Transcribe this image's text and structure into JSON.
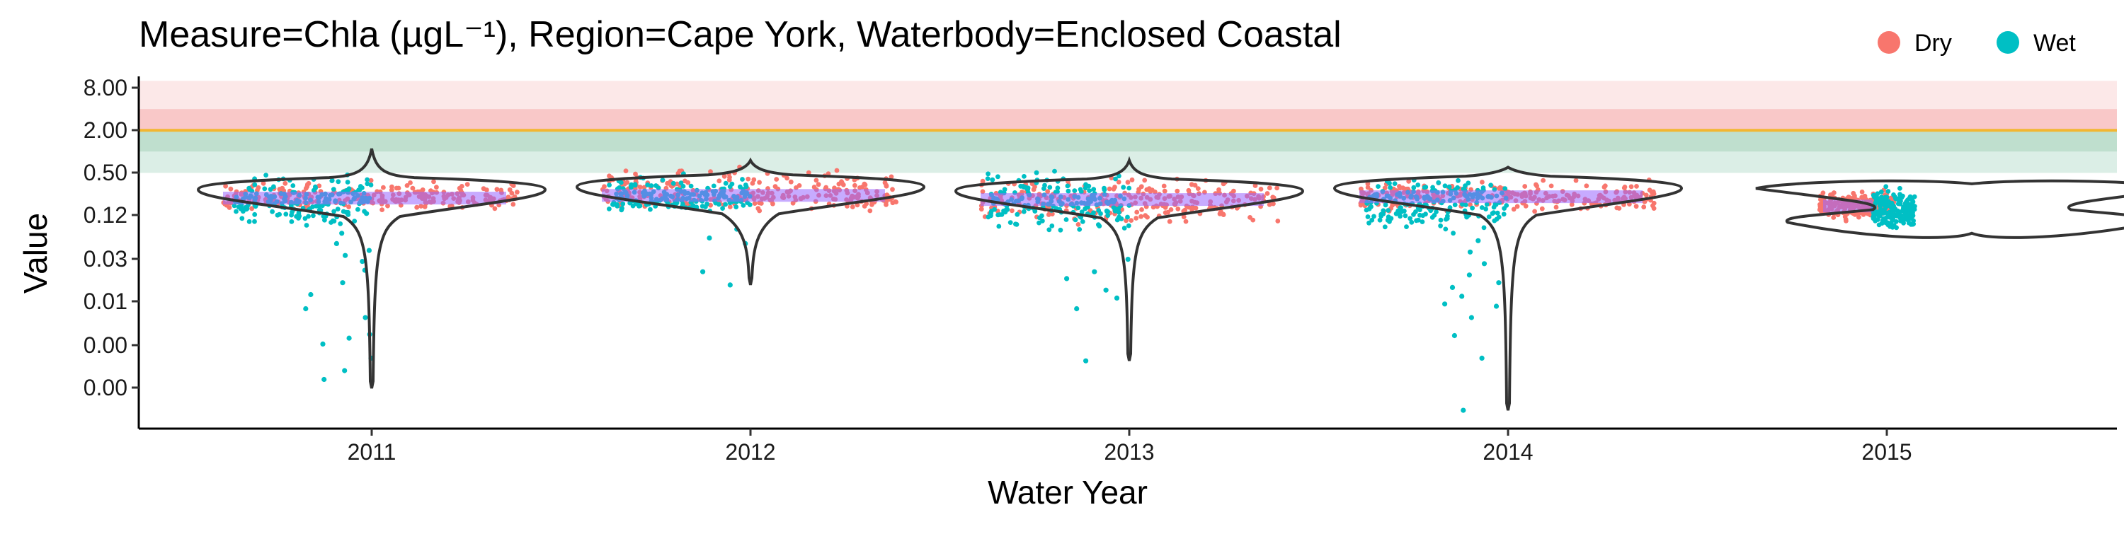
{
  "chart_data": {
    "type": "violin-scatter",
    "title": "Measure=Chla (µgL⁻¹), Region=Cape York, Waterbody=Enclosed Coastal",
    "xlabel": "Water Year",
    "ylabel": "Value",
    "categories": [
      "2011",
      "2012",
      "2013",
      "2014",
      "2015"
    ],
    "y_scale": "log",
    "y_ticks": [
      "8.00",
      "2.00",
      "0.50",
      "0.12",
      "0.03",
      "0.01",
      "0.00",
      "0.00"
    ],
    "legend": {
      "position": "top-right",
      "entries": [
        {
          "name": "Dry",
          "color": "#F8766D"
        },
        {
          "name": "Wet",
          "color": "#00BFC4"
        }
      ]
    },
    "guideline": 2.0,
    "bands": [
      {
        "from": 0.5,
        "to": 1.0,
        "color": "#cfe8de"
      },
      {
        "from": 1.0,
        "to": 2.0,
        "color": "#a9d4bd"
      },
      {
        "from": 2.0,
        "to": 4.0,
        "color": "#f7b6b6"
      },
      {
        "from": 4.0,
        "to": 10.0,
        "color": "#fbe0e0"
      }
    ],
    "series": [
      {
        "name": "Dry",
        "color": "#F8766D"
      },
      {
        "name": "Wet",
        "color": "#00BFC4"
      }
    ],
    "groups": [
      {
        "year": "2011",
        "dry_range": [
          0.14,
          0.45
        ],
        "wet_range": [
          0.08,
          0.6
        ],
        "median": 0.22,
        "min": 0.00045,
        "max": 1.1,
        "wet_outliers": [
          0.0023,
          0.0019,
          0.0026,
          0.0045,
          0.006,
          0.0095,
          0.014,
          0.021,
          0.034,
          0.05,
          0.07,
          0.0006,
          0.0008,
          0.0012,
          0.04,
          0.028
        ]
      },
      {
        "year": "2012",
        "dry_range": [
          0.12,
          0.7
        ],
        "wet_range": [
          0.12,
          0.55
        ],
        "median": 0.24,
        "min": 0.013,
        "max": 0.75,
        "wet_outliers": [
          0.013,
          0.02,
          0.06,
          0.08,
          0.05
        ]
      },
      {
        "year": "2013",
        "dry_range": [
          0.08,
          0.5
        ],
        "wet_range": [
          0.06,
          0.65
        ],
        "median": 0.21,
        "min": 0.0011,
        "max": 0.75,
        "wet_outliers": [
          0.006,
          0.0085,
          0.011,
          0.016,
          0.02,
          0.03,
          0.0011
        ]
      },
      {
        "year": "2014",
        "dry_range": [
          0.12,
          0.45
        ],
        "wet_range": [
          0.06,
          0.5
        ],
        "median": 0.23,
        "min": 0.00022,
        "max": 0.6,
        "wet_outliers": [
          0.00022,
          0.0012,
          0.0025,
          0.0045,
          0.0065,
          0.009,
          0.012,
          0.018,
          0.026,
          0.038,
          0.055,
          0.007,
          0.014
        ]
      },
      {
        "year": "2015",
        "dry_range": [
          0.1,
          0.3
        ],
        "wet_range": [
          0.07,
          0.35
        ],
        "median": 0.17,
        "min": 0.07,
        "max": 0.35,
        "wet_outliers": []
      }
    ]
  }
}
